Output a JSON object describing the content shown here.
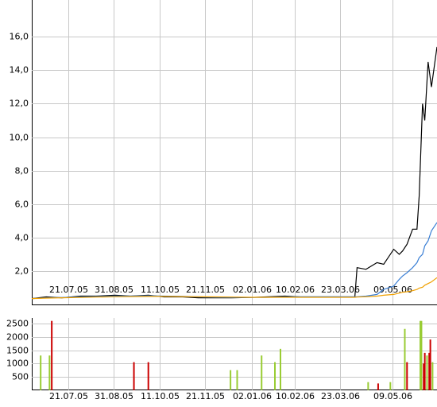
{
  "chart_data": [
    {
      "type": "line",
      "x": [
        "2005-06-18",
        "2005-07-01",
        "2005-07-15",
        "2005-08-01",
        "2005-08-15",
        "2005-09-01",
        "2005-09-15",
        "2005-10-01",
        "2005-10-15",
        "2005-11-01",
        "2005-11-15",
        "2005-12-01",
        "2005-12-15",
        "2006-01-02",
        "2006-01-15",
        "2006-02-01",
        "2006-02-15",
        "2006-03-01",
        "2006-03-15",
        "2006-04-05",
        "2006-04-07",
        "2006-04-15",
        "2006-04-25",
        "2006-05-01",
        "2006-05-10",
        "2006-05-15",
        "2006-05-18",
        "2006-05-22",
        "2006-05-27",
        "2006-05-31",
        "2006-06-02",
        "2006-06-05",
        "2006-06-07",
        "2006-06-10",
        "2006-06-13",
        "2006-06-18"
      ],
      "series": [
        {
          "color": "#000000",
          "values": [
            0.35,
            0.45,
            0.4,
            0.5,
            0.5,
            0.55,
            0.5,
            0.55,
            0.45,
            0.45,
            0.4,
            0.4,
            0.4,
            0.42,
            0.45,
            0.5,
            0.45,
            0.45,
            0.45,
            0.45,
            2.2,
            2.1,
            2.5,
            2.4,
            3.3,
            3.0,
            3.2,
            3.6,
            4.5,
            4.5,
            6.5,
            12.0,
            11.0,
            14.5,
            13.0,
            15.4
          ]
        },
        {
          "color": "#3a7fd5",
          "values": [
            0.35,
            0.4,
            0.42,
            0.45,
            0.47,
            0.5,
            0.5,
            0.52,
            0.5,
            0.48,
            0.45,
            0.43,
            0.42,
            0.42,
            0.43,
            0.45,
            0.46,
            0.46,
            0.46,
            0.46,
            0.46,
            0.5,
            0.6,
            0.9,
            1.1,
            1.5,
            1.7,
            1.9,
            2.2,
            2.5,
            2.8,
            3.0,
            3.5,
            3.8,
            4.4,
            4.9
          ]
        },
        {
          "color": "#f0a000",
          "values": [
            0.35,
            0.38,
            0.4,
            0.42,
            0.44,
            0.46,
            0.47,
            0.48,
            0.48,
            0.47,
            0.46,
            0.45,
            0.44,
            0.43,
            0.43,
            0.43,
            0.43,
            0.43,
            0.43,
            0.43,
            0.44,
            0.46,
            0.5,
            0.55,
            0.6,
            0.68,
            0.73,
            0.76,
            0.82,
            0.9,
            0.98,
            1.03,
            1.15,
            1.25,
            1.35,
            1.6
          ]
        }
      ],
      "xlim": [
        "2005-06-18",
        "2006-06-18"
      ],
      "xticks": [
        {
          "value": "2005-07-21",
          "label": "21.07.05"
        },
        {
          "value": "2005-08-31",
          "label": "31.08.05"
        },
        {
          "value": "2005-10-11",
          "label": "11.10.05"
        },
        {
          "value": "2005-11-21",
          "label": "21.11.05"
        },
        {
          "value": "2006-01-02",
          "label": "02.01.06"
        },
        {
          "value": "2006-02-10",
          "label": "10.02.06"
        },
        {
          "value": "2006-03-23",
          "label": "23.03.06"
        },
        {
          "value": "2006-05-09",
          "label": "09.05.06"
        }
      ],
      "ylim": [
        0,
        18.2
      ],
      "yticks": [
        {
          "value": 2,
          "label": "2,0"
        },
        {
          "value": 4,
          "label": "4,0"
        },
        {
          "value": 6,
          "label": "6,0"
        },
        {
          "value": 8,
          "label": "8,0"
        },
        {
          "value": 10,
          "label": "10,0"
        },
        {
          "value": 12,
          "label": "12,0"
        },
        {
          "value": 14,
          "label": "14,0"
        },
        {
          "value": 16,
          "label": "16,0"
        }
      ],
      "grid": true
    },
    {
      "type": "bar",
      "x": [
        "2005-06-26",
        "2005-07-04",
        "2005-07-06",
        "2005-09-18",
        "2005-10-01",
        "2005-12-14",
        "2005-12-20",
        "2006-01-11",
        "2006-01-23",
        "2006-01-28",
        "2006-04-17",
        "2006-04-26",
        "2006-05-07",
        "2006-05-20",
        "2006-05-22",
        "2006-06-03",
        "2006-06-04",
        "2006-06-06",
        "2006-06-07",
        "2006-06-09",
        "2006-06-11",
        "2006-06-12",
        "2006-06-14"
      ],
      "values": [
        1300,
        1300,
        2600,
        1050,
        1050,
        750,
        750,
        1300,
        1050,
        1550,
        300,
        250,
        300,
        2300,
        1050,
        2600,
        2600,
        1000,
        1400,
        1300,
        1400,
        1900,
        1050
      ],
      "colors": [
        "#99cc33",
        "#99cc33",
        "#cc0000",
        "#cc0000",
        "#cc0000",
        "#99cc33",
        "#99cc33",
        "#99cc33",
        "#99cc33",
        "#99cc33",
        "#99cc33",
        "#cc0000",
        "#99cc33",
        "#99cc33",
        "#cc0000",
        "#99cc33",
        "#99cc33",
        "#cc0000",
        "#cc0000",
        "#99cc33",
        "#cc0000",
        "#cc0000",
        "#99cc33"
      ],
      "xlim": [
        "2005-06-18",
        "2006-06-18"
      ],
      "xticks": [
        {
          "value": "2005-07-21",
          "label": "21.07.05"
        },
        {
          "value": "2005-08-31",
          "label": "31.08.05"
        },
        {
          "value": "2005-10-11",
          "label": "11.10.05"
        },
        {
          "value": "2005-11-21",
          "label": "21.11.05"
        },
        {
          "value": "2006-01-02",
          "label": "02.01.06"
        },
        {
          "value": "2006-02-10",
          "label": "10.02.06"
        },
        {
          "value": "2006-03-23",
          "label": "23.03.06"
        },
        {
          "value": "2006-05-09",
          "label": "09.05.06"
        }
      ],
      "ylim": [
        0,
        2710
      ],
      "yticks": [
        500,
        1000,
        1500,
        2000,
        2500
      ],
      "grid": true
    }
  ]
}
